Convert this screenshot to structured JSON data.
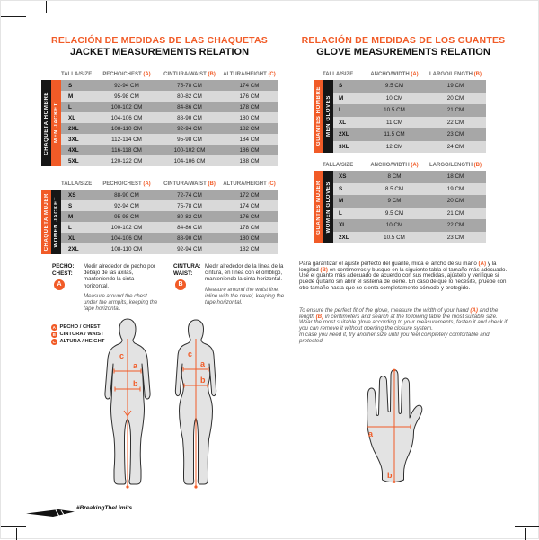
{
  "colors": {
    "accent": "#f15b27",
    "row_dark": "#a7a7a7",
    "row_light": "#d9d9d9",
    "strip_black": "#161616"
  },
  "left": {
    "title_es": "RELACIÓN DE MEDIDAS DE LAS CHAQUETAS",
    "title_en": "JACKET MEASUREMENTS RELATION",
    "headers": {
      "size": "TALLA/SIZE",
      "chest": "PECHO/CHEST",
      "chest_marker": "(A)",
      "waist": "CINTURA/WAIST",
      "waist_marker": "(B)",
      "height": "ALTURA/HEIGHT",
      "height_marker": "(C)"
    },
    "men_jacket": {
      "label_es": "CHAQUETA HOMBRE",
      "label_en": "MEN JACKET",
      "rows": [
        {
          "size": "S",
          "chest": "92-94 CM",
          "waist": "75-78 CM",
          "height": "174 CM"
        },
        {
          "size": "M",
          "chest": "95-98 CM",
          "waist": "80-82 CM",
          "height": "176 CM"
        },
        {
          "size": "L",
          "chest": "100-102 CM",
          "waist": "84-86 CM",
          "height": "178 CM"
        },
        {
          "size": "XL",
          "chest": "104-106 CM",
          "waist": "88-90 CM",
          "height": "180 CM"
        },
        {
          "size": "2XL",
          "chest": "108-110 CM",
          "waist": "92-94 CM",
          "height": "182 CM"
        },
        {
          "size": "3XL",
          "chest": "112-114 CM",
          "waist": "95-98 CM",
          "height": "184 CM"
        },
        {
          "size": "4XL",
          "chest": "116-118 CM",
          "waist": "100-102 CM",
          "height": "186 CM"
        },
        {
          "size": "5XL",
          "chest": "120-122 CM",
          "waist": "104-106 CM",
          "height": "188 CM"
        }
      ]
    },
    "women_jacket": {
      "label_es": "CHAQUETA MUJER",
      "label_en": "WOMEN JACKET",
      "rows": [
        {
          "size": "XS",
          "chest": "88-90 CM",
          "waist": "72-74 CM",
          "height": "172 CM"
        },
        {
          "size": "S",
          "chest": "92-94 CM",
          "waist": "75-78 CM",
          "height": "174 CM"
        },
        {
          "size": "M",
          "chest": "95-98 CM",
          "waist": "80-82 CM",
          "height": "176 CM"
        },
        {
          "size": "L",
          "chest": "100-102 CM",
          "waist": "84-86 CM",
          "height": "178 CM"
        },
        {
          "size": "XL",
          "chest": "104-106 CM",
          "waist": "88-90 CM",
          "height": "180 CM"
        },
        {
          "size": "2XL",
          "chest": "108-110 CM",
          "waist": "92-94 CM",
          "height": "182 CM"
        }
      ]
    },
    "notes": {
      "chest": {
        "term_es": "PECHO:",
        "term_en": "CHEST:",
        "marker": "A",
        "text_es": "Medir alrededor de pecho por debajo de las axilas, manteniendo la cinta horizontal.",
        "text_en": "Measure around the chest under the armpits, keeping the tape horizontal."
      },
      "waist": {
        "term_es": "CINTURA:",
        "term_en": "WAIST:",
        "marker": "B",
        "text_es": "Medir alrededor de la línea de la cintura, en línea con el ombligo, manteniendo la cinta horizontal.",
        "text_en": "Measure around the waist line, inline with the navel, keeping the tape horizontal."
      }
    },
    "legend": [
      {
        "marker": "A",
        "label": "PECHO / CHEST"
      },
      {
        "marker": "B",
        "label": "CINTURA / WAIST"
      },
      {
        "marker": "C",
        "label": "ALTURA / HEIGHT"
      }
    ],
    "figure_labels": {
      "a": "a",
      "b": "b",
      "c": "c"
    }
  },
  "right": {
    "title_es": "RELACIÓN DE MEDIDAS DE LOS GUANTES",
    "title_en": "GLOVE MEASUREMENTS RELATION",
    "headers": {
      "size": "TALLA/SIZE",
      "width": "ANCHO/WIDTH",
      "width_marker": "(A)",
      "length": "LARGO/LENGTH",
      "length_marker": "(B)"
    },
    "men_gloves": {
      "label_es": "GUANTES HOMBRE",
      "label_en": "MEN GLOVES",
      "rows": [
        {
          "size": "S",
          "width": "9.5 CM",
          "length": "19 CM"
        },
        {
          "size": "M",
          "width": "10 CM",
          "length": "20 CM"
        },
        {
          "size": "L",
          "width": "10.5 CM",
          "length": "21 CM"
        },
        {
          "size": "XL",
          "width": "11 CM",
          "length": "22 CM"
        },
        {
          "size": "2XL",
          "width": "11.5 CM",
          "length": "23 CM"
        },
        {
          "size": "3XL",
          "width": "12 CM",
          "length": "24 CM"
        }
      ]
    },
    "women_gloves": {
      "label_es": "GUANTES MUJER",
      "label_en": "WOMEN GLOVES",
      "rows": [
        {
          "size": "XS",
          "width": "8 CM",
          "length": "18 CM"
        },
        {
          "size": "S",
          "width": "8.5 CM",
          "length": "19 CM"
        },
        {
          "size": "M",
          "width": "9 CM",
          "length": "20 CM"
        },
        {
          "size": "L",
          "width": "9.5 CM",
          "length": "21 CM"
        },
        {
          "size": "XL",
          "width": "10 CM",
          "length": "22 CM"
        },
        {
          "size": "2XL",
          "width": "10.5 CM",
          "length": "23 CM"
        }
      ]
    },
    "note_es": "Para garantizar el ajuste perfecto del guante, mida el ancho de su mano (A) y la longitud (B) en centímetros y busque en la siguiente tabla el tamaño más adecuado.\nUse el guante más adecuado de acuerdo con sus medidas, ajústelo y verifique si puede quitarlo sin abrir el sistema de cierre. En caso de que lo necesite, pruebe con otro tamaño hasta que se sienta completamente cómodo y protegido.",
    "note_en": "To ensure the perfect fit of the glove, measure the width of your hand (A) and the length (B) in centimeters and search at the following table the most suitable size. Wear the most suitable glove according to your measurements, fasten it and check if you can remove it without opening the closure system.\nIn case you need it, try another size until you feel completely comfortable and protected",
    "hand_labels": {
      "a": "a",
      "b": "b"
    }
  },
  "footer": {
    "hashtag": "#BreakingTheLimits"
  }
}
